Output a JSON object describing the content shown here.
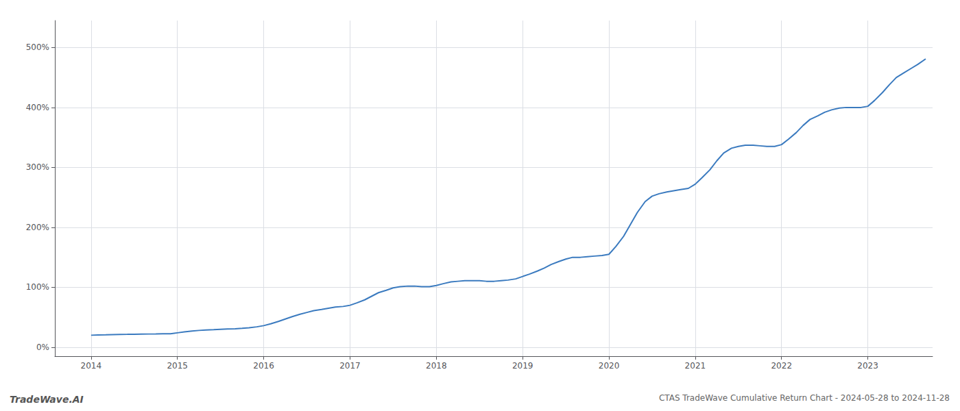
{
  "chart_data": {
    "type": "line",
    "title": "CTAS TradeWave Cumulative Return Chart - 2024-05-28 to 2024-11-28",
    "annotations": [
      "TradeWave.AI"
    ],
    "color": "#3a7abf",
    "x": [
      2014.0,
      2014.08,
      2014.17,
      2014.25,
      2014.33,
      2014.42,
      2014.5,
      2014.58,
      2014.67,
      2014.75,
      2014.83,
      2014.92,
      2015.0,
      2015.08,
      2015.17,
      2015.25,
      2015.33,
      2015.42,
      2015.5,
      2015.58,
      2015.67,
      2015.75,
      2015.83,
      2015.92,
      2016.0,
      2016.08,
      2016.17,
      2016.25,
      2016.33,
      2016.42,
      2016.5,
      2016.58,
      2016.67,
      2016.75,
      2016.83,
      2016.92,
      2017.0,
      2017.08,
      2017.17,
      2017.25,
      2017.33,
      2017.42,
      2017.5,
      2017.58,
      2017.67,
      2017.75,
      2017.83,
      2017.92,
      2018.0,
      2018.08,
      2018.17,
      2018.25,
      2018.33,
      2018.42,
      2018.5,
      2018.58,
      2018.67,
      2018.75,
      2018.83,
      2018.92,
      2019.0,
      2019.08,
      2019.17,
      2019.25,
      2019.33,
      2019.42,
      2019.5,
      2019.58,
      2019.67,
      2019.75,
      2019.83,
      2019.92,
      2020.0,
      2020.08,
      2020.17,
      2020.25,
      2020.33,
      2020.42,
      2020.5,
      2020.58,
      2020.67,
      2020.75,
      2020.83,
      2020.92,
      2021.0,
      2021.08,
      2021.17,
      2021.25,
      2021.33,
      2021.42,
      2021.5,
      2021.58,
      2021.67,
      2021.75,
      2021.83,
      2021.92,
      2022.0,
      2022.08,
      2022.17,
      2022.25,
      2022.33,
      2022.42,
      2022.5,
      2022.58,
      2022.67,
      2022.75,
      2022.83,
      2022.92,
      2023.0,
      2023.08,
      2023.17,
      2023.25,
      2023.33,
      2023.42,
      2023.5,
      2023.58,
      2023.67
    ],
    "values": [
      20,
      20.3,
      20.6,
      21.0,
      21.3,
      21.5,
      21.7,
      21.9,
      22.0,
      22.1,
      22.3,
      22.5,
      24,
      25.5,
      27,
      28,
      28.8,
      29.3,
      29.8,
      30.3,
      30.8,
      31.5,
      32.5,
      34,
      36,
      39,
      43,
      47,
      51,
      55,
      58,
      61,
      63,
      65,
      67,
      68,
      70,
      74,
      79,
      85,
      91,
      95,
      99,
      101,
      102,
      102,
      101,
      101,
      103,
      106,
      109,
      110,
      111,
      111,
      111,
      110,
      110,
      111,
      112,
      114,
      118,
      122,
      127,
      132,
      138,
      143,
      147,
      150,
      150,
      151,
      152,
      153,
      155,
      168,
      185,
      205,
      225,
      243,
      252,
      256,
      259,
      261,
      263,
      265,
      272,
      283,
      296,
      311,
      324,
      332,
      335,
      337,
      337,
      336,
      335,
      335,
      338,
      347,
      358,
      370,
      380,
      386,
      392,
      396,
      399,
      400,
      400,
      400,
      402,
      412,
      425,
      438,
      450,
      458,
      465,
      472,
      481
    ],
    "xlim": [
      2013.58,
      2023.75
    ],
    "ylim": [
      -15,
      545
    ],
    "xticks": [
      2014,
      2015,
      2016,
      2017,
      2018,
      2019,
      2020,
      2021,
      2022,
      2023
    ],
    "yticks": [
      {
        "value": 0,
        "label": "0%"
      },
      {
        "value": 100,
        "label": "100%"
      },
      {
        "value": 200,
        "label": "200%"
      },
      {
        "value": 300,
        "label": "300%"
      },
      {
        "value": 400,
        "label": "400%"
      },
      {
        "value": 500,
        "label": "500%"
      }
    ],
    "grid": true
  }
}
